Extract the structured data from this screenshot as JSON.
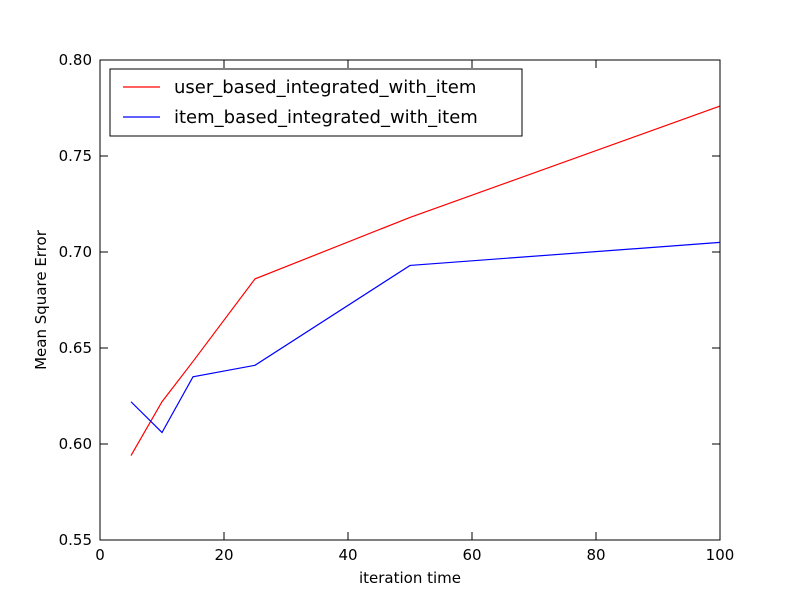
{
  "chart_data": {
    "type": "line",
    "title": "",
    "xlabel": "iteration time",
    "ylabel": "Mean Square Error",
    "xlim": [
      0,
      100
    ],
    "ylim": [
      0.55,
      0.8
    ],
    "xticks": [
      0,
      20,
      40,
      60,
      80,
      100
    ],
    "yticks": [
      0.55,
      0.6,
      0.65,
      0.7,
      0.75,
      0.8
    ],
    "xtick_labels": [
      "0",
      "20",
      "40",
      "60",
      "80",
      "100"
    ],
    "ytick_labels": [
      "0.55",
      "0.60",
      "0.65",
      "0.70",
      "0.75",
      "0.80"
    ],
    "grid": false,
    "legend": "top-left",
    "series": [
      {
        "name": "user_based_integrated_with_item",
        "color": "#ff0000",
        "x": [
          5,
          10,
          15,
          25,
          50,
          100
        ],
        "y": [
          0.594,
          0.622,
          0.643,
          0.686,
          0.718,
          0.776
        ]
      },
      {
        "name": "item_based_integrated_with_item",
        "color": "#0000ff",
        "x": [
          5,
          10,
          15,
          25,
          50,
          100
        ],
        "y": [
          0.622,
          0.606,
          0.635,
          0.641,
          0.693,
          0.705
        ]
      }
    ]
  }
}
